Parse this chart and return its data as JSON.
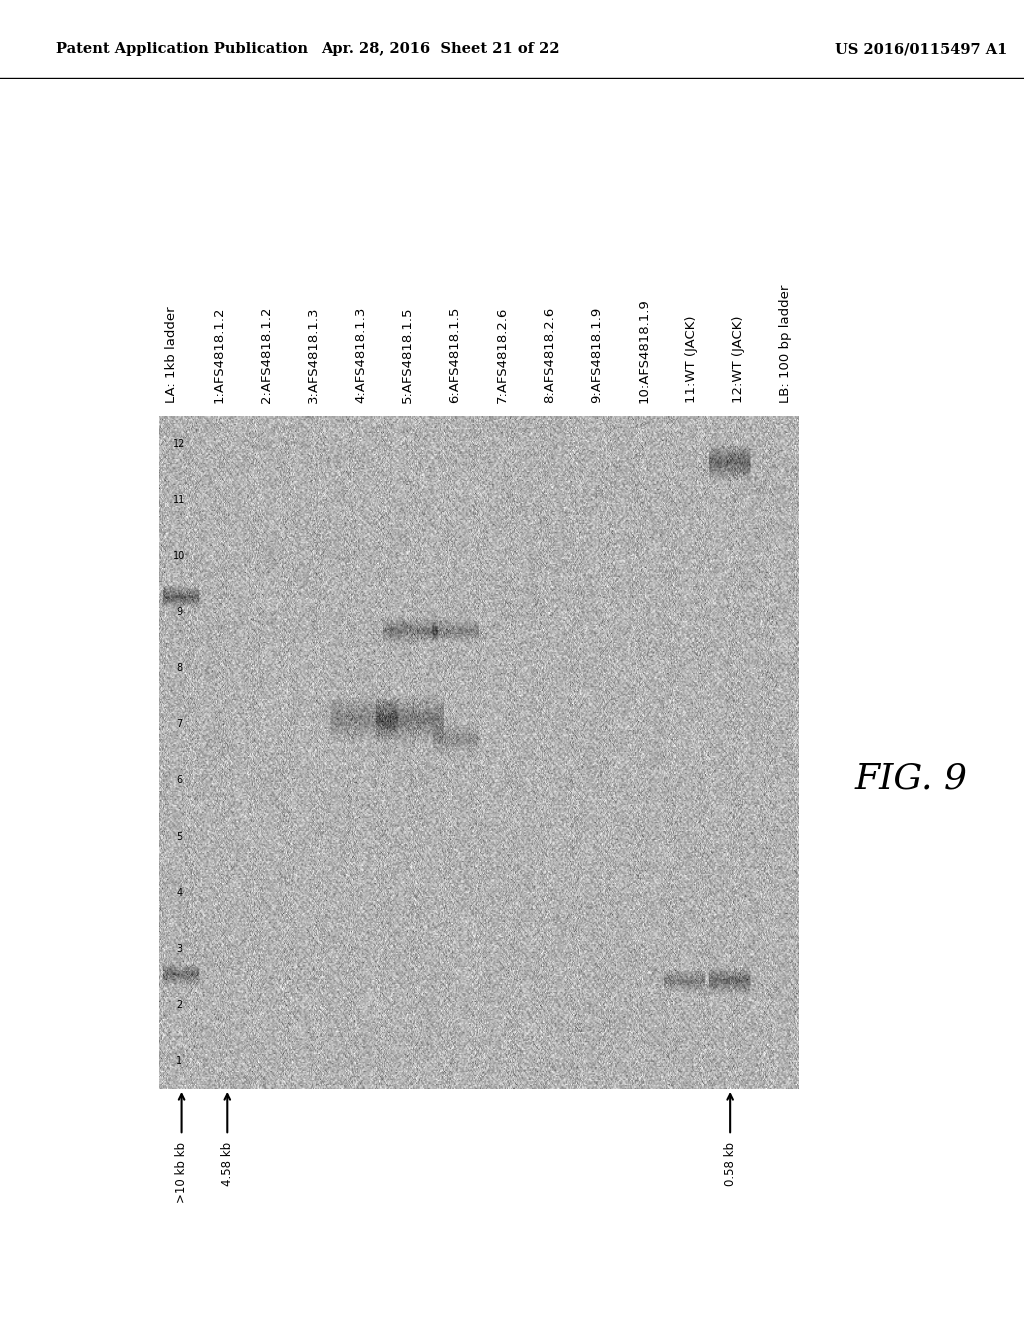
{
  "header_left": "Patent Application Publication",
  "header_center": "Apr. 28, 2016  Sheet 21 of 22",
  "header_right": "US 2016/0115497 A1",
  "legend_items": [
    "LA: 1kb ladder",
    "1:AFS4818.1.2",
    "2:AFS4818.1.2",
    "3:AFS4818.1.3",
    "4:AFS4818.1.3",
    "5:AFS4818.1.5",
    "6:AFS4818.1.5",
    "7:AFS4818.2.6",
    "8:AFS4818.2.6",
    "9:AFS4818.1.9",
    "10:AFS4818.1.9",
    "11:WT (JACK)",
    "12:WT (JACK)",
    "LB: 100 bp ladder"
  ],
  "fig_label": "FIG. 9",
  "band_labels": [
    ">10 kb kb",
    "4.58 kb",
    "0.58 kb"
  ],
  "lane_numbers": [
    "1",
    "2",
    "3",
    "4",
    "5",
    "6",
    "7",
    "8",
    "9",
    "10",
    "11",
    "12"
  ],
  "bg_color": "#ffffff",
  "header_fontsize": 10.5,
  "legend_fontsize": 9.5,
  "gel_noise_mean": 0.72,
  "gel_noise_std": 0.1,
  "gel_seed": 123
}
